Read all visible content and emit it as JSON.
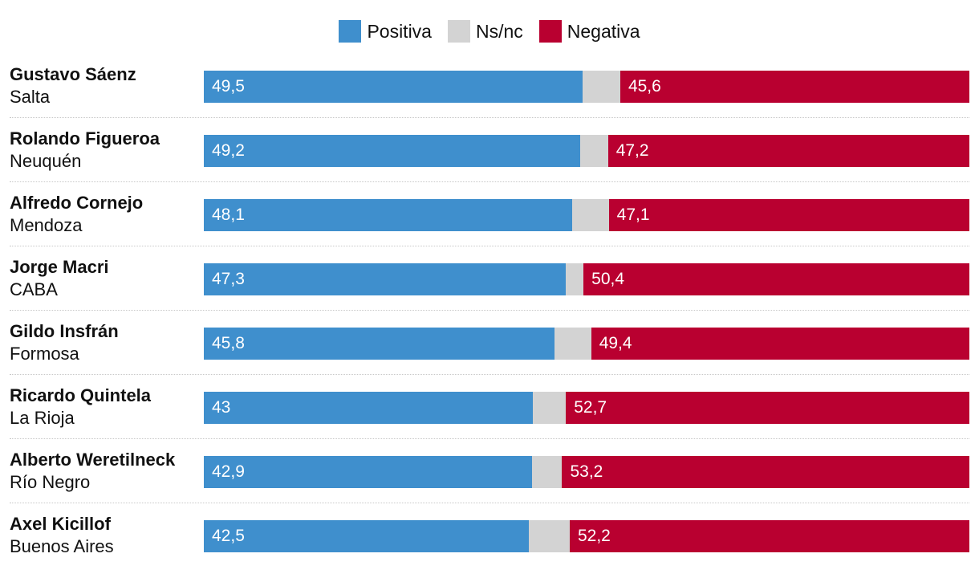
{
  "chart_data": {
    "type": "bar",
    "orientation": "horizontal",
    "stacked": true,
    "title": "",
    "legend": {
      "placement": "top-center",
      "entries": [
        {
          "key": "positiva",
          "label": "Positiva",
          "color": "#3f8fcd"
        },
        {
          "key": "nsnc",
          "label": "Ns/nc",
          "color": "#d3d3d3"
        },
        {
          "key": "negativa",
          "label": "Negativa",
          "color": "#b90030"
        }
      ]
    },
    "xlim": [
      0,
      100
    ],
    "categories": [
      {
        "name": "Gustavo Sáenz",
        "province": "Salta"
      },
      {
        "name": "Rolando Figueroa",
        "province": "Neuquén"
      },
      {
        "name": "Alfredo Cornejo",
        "province": "Mendoza"
      },
      {
        "name": "Jorge Macri",
        "province": "CABA"
      },
      {
        "name": "Gildo Insfrán",
        "province": "Formosa"
      },
      {
        "name": "Ricardo Quintela",
        "province": "La Rioja"
      },
      {
        "name": "Alberto Weretilneck",
        "province": "Río Negro"
      },
      {
        "name": "Axel Kicillof",
        "province": "Buenos Aires"
      }
    ],
    "series": [
      {
        "name": "Positiva",
        "values": [
          49.5,
          49.2,
          48.1,
          47.3,
          45.8,
          43,
          42.9,
          42.5
        ],
        "labels": [
          "49,5",
          "49,2",
          "48,1",
          "47,3",
          "45,8",
          "43",
          "42,9",
          "42,5"
        ]
      },
      {
        "name": "Ns/nc",
        "values": [
          4.9,
          3.6,
          4.8,
          2.3,
          4.8,
          4.3,
          3.9,
          5.3
        ]
      },
      {
        "name": "Negativa",
        "values": [
          45.6,
          47.2,
          47.1,
          50.4,
          49.4,
          52.7,
          53.2,
          52.2
        ],
        "labels": [
          "45,6",
          "47,2",
          "47,1",
          "50,4",
          "49,4",
          "52,7",
          "53,2",
          "52,2"
        ]
      }
    ]
  }
}
